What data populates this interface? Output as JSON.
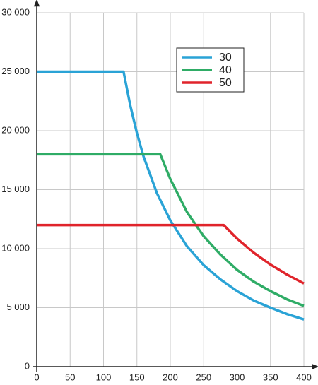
{
  "chart_data": {
    "type": "line",
    "xlim": [
      0,
      400
    ],
    "xticks": [
      0,
      50,
      100,
      150,
      200,
      250,
      300,
      350,
      400
    ],
    "ylim": [
      0,
      30000
    ],
    "yticks": [
      0,
      {
        "value": 5000,
        "label": "5 000"
      },
      {
        "value": 10000,
        "label": "10 000"
      },
      {
        "value": 15000,
        "label": "15 000"
      },
      {
        "value": 20000,
        "label": "20 000"
      },
      {
        "value": 25000,
        "label": "25 000"
      },
      {
        "value": 30000,
        "label": "30 000"
      }
    ],
    "grid": true,
    "legend": "upper right",
    "series": [
      {
        "name": "30",
        "color": "#2aa3d6",
        "x": [
          0,
          130,
          140,
          150,
          160,
          180,
          200,
          225,
          250,
          275,
          300,
          325,
          350,
          375,
          400
        ],
        "values": [
          25000,
          25000,
          22150,
          19800,
          17800,
          14700,
          12400,
          10200,
          8600,
          7400,
          6400,
          5600,
          5000,
          4450,
          4000
        ]
      },
      {
        "name": "40",
        "color": "#2fac66",
        "x": [
          0,
          185,
          200,
          225,
          250,
          275,
          300,
          325,
          350,
          375,
          400
        ],
        "values": [
          18000,
          18000,
          15900,
          13100,
          11050,
          9500,
          8200,
          7200,
          6400,
          5700,
          5150
        ]
      },
      {
        "name": "50",
        "color": "#e0242b",
        "x": [
          0,
          280,
          300,
          325,
          350,
          375,
          400
        ],
        "values": [
          12000,
          12000,
          10850,
          9650,
          8650,
          7800,
          7050
        ]
      }
    ]
  }
}
